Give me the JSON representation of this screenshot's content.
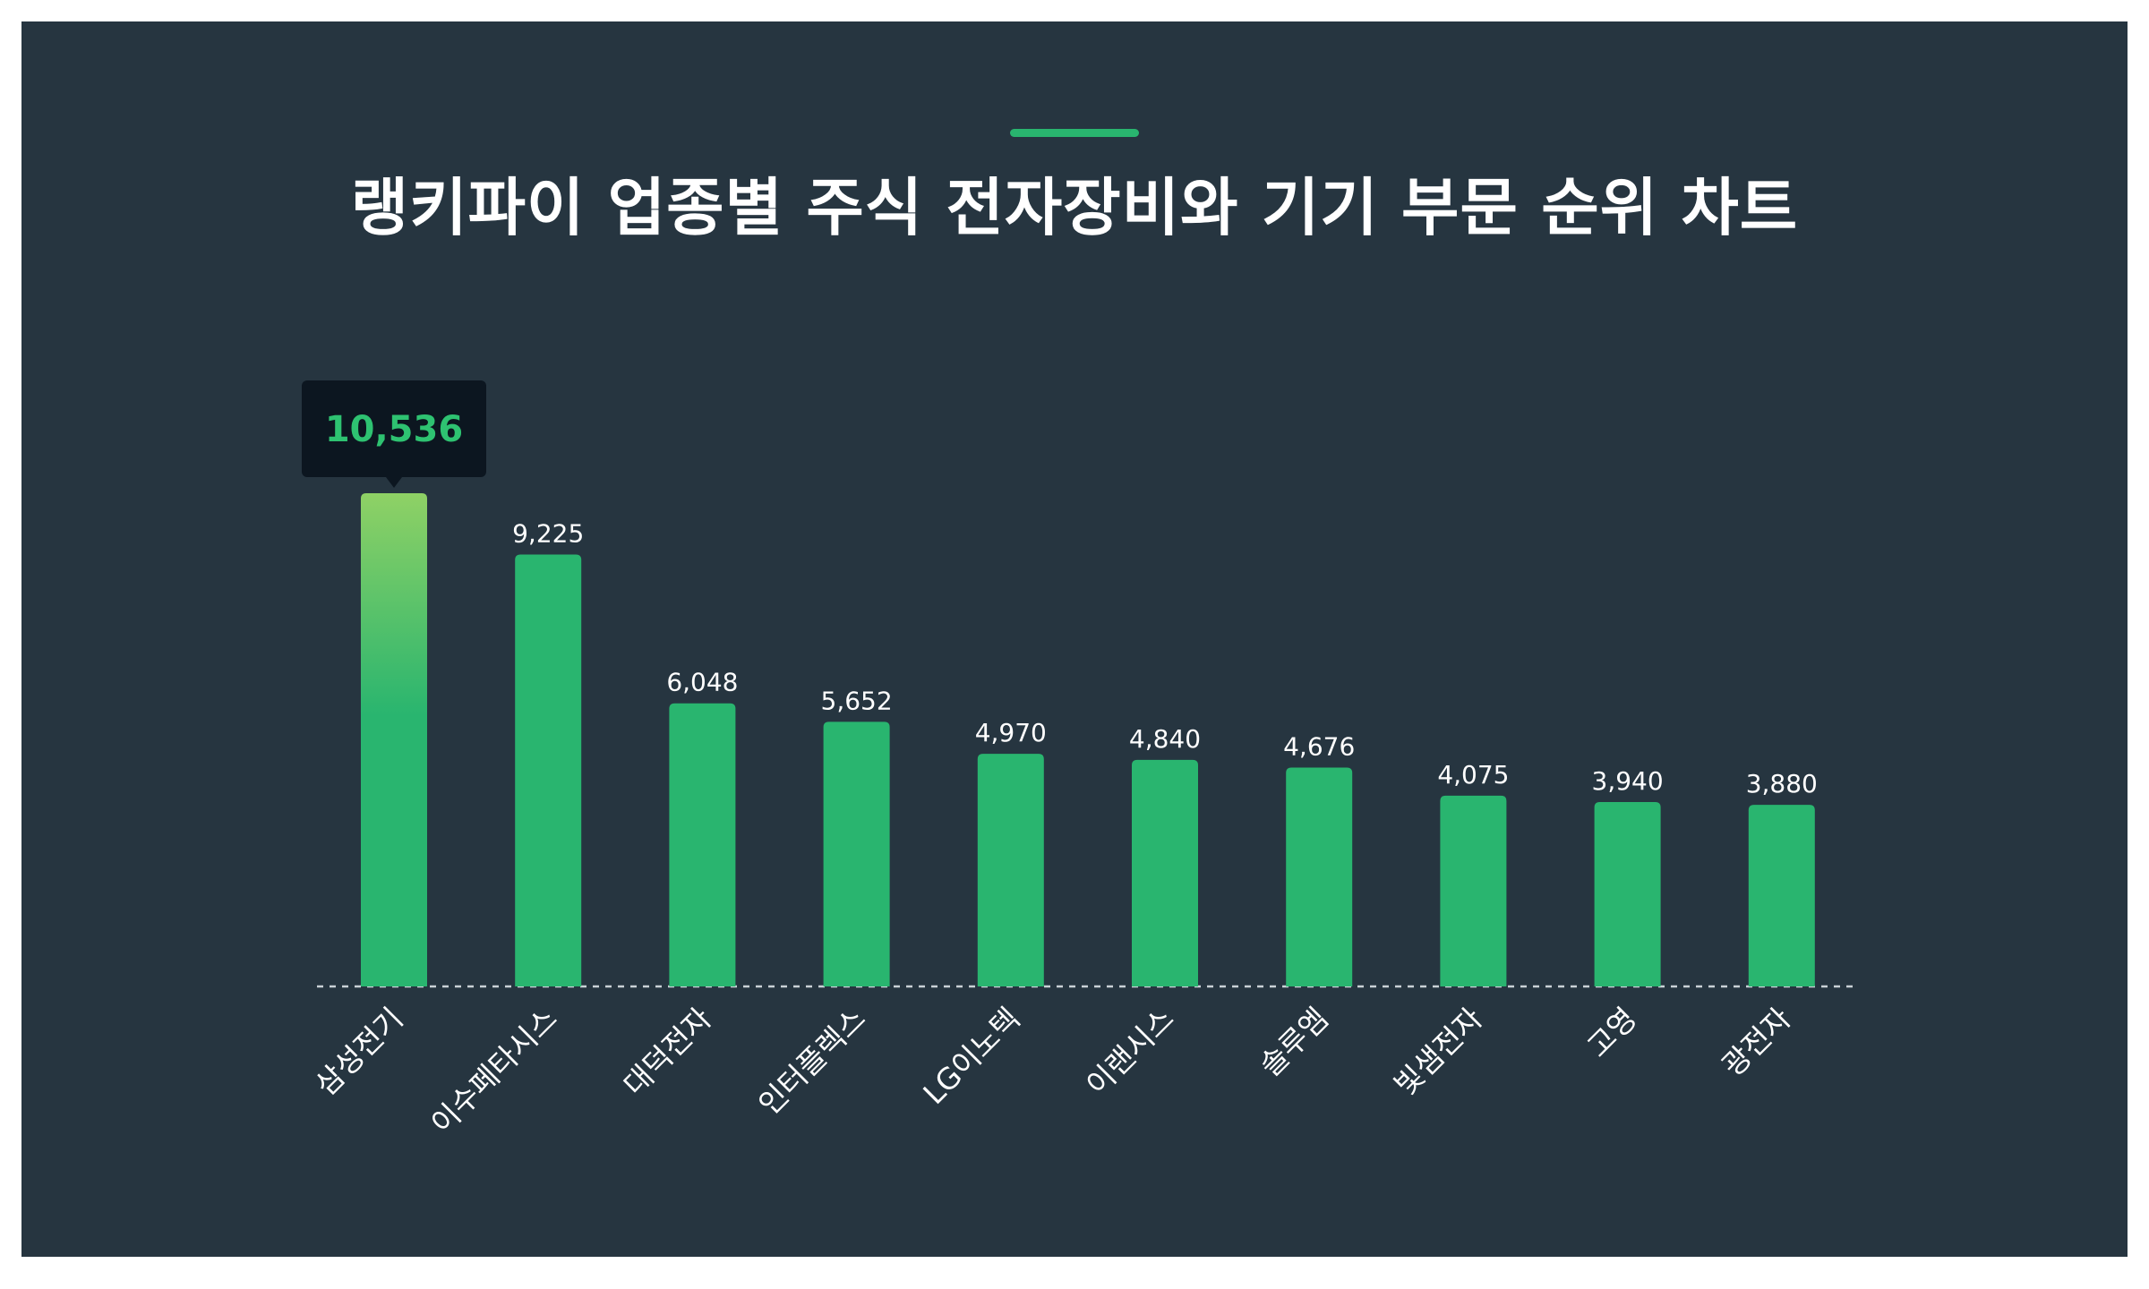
{
  "title": "랭키파이 업종별 주식 전자장비와 기기 부문 순위 차트",
  "colors": {
    "background": "#263540",
    "bar": "#29b56f",
    "bar_highlight_top": "#8fd165",
    "tooltip_bg": "#0c1620",
    "tooltip_text": "#2ec271",
    "accent": "#29b56f"
  },
  "chart_data": {
    "type": "bar",
    "categories": [
      "삼성전기",
      "이수페타시스",
      "대덕전자",
      "인터플렉스",
      "LG이노텍",
      "이랜시스",
      "솔루엠",
      "빛샘전자",
      "고영",
      "광전자"
    ],
    "values": [
      10536,
      9225,
      6048,
      5652,
      4970,
      4840,
      4676,
      4075,
      3940,
      3880
    ],
    "value_labels": [
      "10,536",
      "9,225",
      "6,048",
      "5,652",
      "4,970",
      "4,840",
      "4,676",
      "4,075",
      "3,940",
      "3,880"
    ],
    "highlight_index": 0,
    "ylim": [
      0,
      10536
    ],
    "grid": false,
    "baseline": "dashed"
  }
}
